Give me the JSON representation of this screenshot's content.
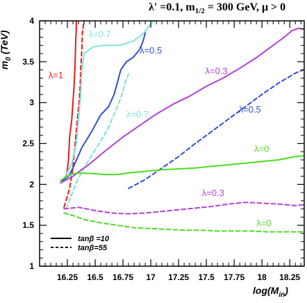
{
  "title_parts": {
    "lam": "λ' =0.1, m",
    "sub": "1/2",
    "rest": " = 300 GeV,  μ > 0"
  },
  "ylabel_parts": {
    "m": "m",
    "sub": "0",
    "rest": " (TeV)"
  },
  "xlabel_parts": {
    "pre": "log(M",
    "sub": "in",
    "post": ")"
  },
  "chart_data": {
    "type": "line",
    "xlim": [
      16.0,
      18.38
    ],
    "ylim": [
      1.0,
      4.0
    ],
    "xticks": [
      "16.25",
      "16.5",
      "16.75",
      "17",
      "17.25",
      "17.5",
      "17.75",
      "18",
      "18.25"
    ],
    "xtick_values": [
      16.25,
      16.5,
      16.75,
      17.0,
      17.25,
      17.5,
      17.75,
      18.0,
      18.25
    ],
    "yticks": [
      "1",
      "1.5",
      "2",
      "2.5",
      "3",
      "3.5",
      "4"
    ],
    "ytick_values": [
      1,
      1.5,
      2,
      2.5,
      3,
      3.5,
      4
    ],
    "grid": false,
    "legend": {
      "placement": "bottom-left",
      "entries": [
        {
          "label": "tanβ =10",
          "style": "solid"
        },
        {
          "label": "tanβ=55",
          "style": "dashed"
        }
      ]
    },
    "series": [
      {
        "label": "λ=1",
        "color": "#e8191b",
        "style": "solid",
        "x": [
          16.19,
          16.22,
          16.245,
          16.26,
          16.27,
          16.29,
          16.3,
          16.31,
          16.32,
          16.325,
          16.33,
          16.33
        ],
        "y": [
          2.02,
          2.05,
          2.13,
          2.3,
          2.58,
          2.8,
          3.0,
          3.2,
          3.5,
          3.75,
          3.9,
          4.0
        ]
      },
      {
        "label": "",
        "color": "#e8191b",
        "style": "dashed",
        "x": [
          16.22,
          16.27,
          16.3,
          16.32,
          16.34,
          16.355,
          16.365,
          16.37,
          16.38,
          16.385,
          16.4
        ],
        "y": [
          1.72,
          1.95,
          2.2,
          2.5,
          2.8,
          3.0,
          3.2,
          3.4,
          3.65,
          3.85,
          4.0
        ]
      },
      {
        "label": "λ=0.7",
        "color": "#7fe0dc",
        "style": "solid",
        "x": [
          16.19,
          16.23,
          16.29,
          16.33,
          16.35,
          16.37,
          16.38,
          16.4,
          16.48,
          16.57,
          16.63,
          16.72,
          16.84,
          16.94,
          16.98,
          17.03
        ],
        "y": [
          2.02,
          2.1,
          2.25,
          2.5,
          2.8,
          3.1,
          3.4,
          3.6,
          3.68,
          3.7,
          3.7,
          3.7,
          3.75,
          3.85,
          3.93,
          4.0
        ]
      },
      {
        "label": "λ=0.7",
        "color": "#7fe0dc",
        "style": "dashed",
        "x": [
          16.24,
          16.28,
          16.34,
          16.4,
          16.48,
          16.56,
          16.62,
          16.7,
          16.74,
          16.77,
          16.8
        ],
        "y": [
          1.7,
          1.85,
          2.05,
          2.2,
          2.38,
          2.55,
          2.7,
          2.95,
          3.1,
          3.25,
          3.35
        ]
      },
      {
        "label": "λ=0.5",
        "color": "#2f4fcf",
        "style": "solid",
        "x": [
          16.19,
          16.23,
          16.26,
          16.3,
          16.38,
          16.47,
          16.55,
          16.62,
          16.67,
          16.7,
          16.73,
          16.78,
          16.84,
          16.9,
          16.93,
          16.95
        ],
        "y": [
          2.02,
          2.07,
          2.1,
          2.2,
          2.45,
          2.65,
          2.85,
          2.95,
          3.1,
          3.25,
          3.4,
          3.5,
          3.55,
          3.65,
          3.75,
          3.85
        ]
      },
      {
        "label": "λ=0.5",
        "color": "#2f4fcf",
        "style": "dashed",
        "x": [
          16.8,
          16.95,
          17.1,
          17.25,
          17.4,
          17.55,
          17.7,
          17.85,
          18.0,
          18.15,
          18.3,
          18.37
        ],
        "y": [
          1.95,
          2.06,
          2.2,
          2.34,
          2.5,
          2.65,
          2.8,
          2.95,
          3.1,
          3.24,
          3.36,
          3.4
        ]
      },
      {
        "label": "λ=0.3",
        "color": "#b33fd6",
        "style": "solid",
        "x": [
          16.19,
          16.3,
          16.45,
          16.6,
          16.75,
          16.9,
          17.05,
          17.2,
          17.35,
          17.5,
          17.65,
          17.8,
          17.95,
          18.1,
          18.2,
          18.27,
          18.33,
          18.37
        ],
        "y": [
          2.02,
          2.1,
          2.25,
          2.42,
          2.58,
          2.72,
          2.86,
          2.98,
          3.08,
          3.2,
          3.3,
          3.42,
          3.55,
          3.7,
          3.8,
          3.88,
          3.91,
          3.9
        ]
      },
      {
        "label": "λ=0.3",
        "color": "#b33fd6",
        "style": "dashed",
        "x": [
          16.22,
          16.35,
          16.5,
          16.65,
          16.8,
          16.95,
          17.1,
          17.25,
          17.4,
          17.55,
          17.7,
          17.85,
          18.0,
          18.15,
          18.3,
          18.37
        ],
        "y": [
          1.7,
          1.72,
          1.68,
          1.65,
          1.64,
          1.65,
          1.67,
          1.69,
          1.71,
          1.73,
          1.76,
          1.78,
          1.77,
          1.76,
          1.74,
          1.75
        ]
      },
      {
        "label": "λ=0",
        "color": "#4cdb22",
        "style": "solid",
        "x": [
          16.19,
          16.25,
          16.3,
          16.38,
          16.5,
          16.6,
          16.7,
          16.8,
          16.95,
          17.1,
          17.25,
          17.4,
          17.55,
          17.7,
          17.85,
          18.0,
          18.15,
          18.3,
          18.37
        ],
        "y": [
          2.05,
          2.1,
          2.13,
          2.14,
          2.13,
          2.12,
          2.12,
          2.14,
          2.16,
          2.18,
          2.19,
          2.2,
          2.22,
          2.24,
          2.26,
          2.28,
          2.3,
          2.34,
          2.35
        ]
      },
      {
        "label": "λ=0",
        "color": "#4cdb22",
        "style": "dashed",
        "x": [
          16.22,
          16.3,
          16.4,
          16.55,
          16.7,
          16.85,
          17.0,
          17.15,
          17.3,
          17.45,
          17.6,
          17.75,
          17.9,
          18.05,
          18.2,
          18.37
        ],
        "y": [
          1.65,
          1.62,
          1.57,
          1.53,
          1.5,
          1.47,
          1.46,
          1.45,
          1.44,
          1.44,
          1.43,
          1.43,
          1.43,
          1.42,
          1.42,
          1.42
        ]
      }
    ],
    "annotations": [
      {
        "text": "λ=1",
        "color": "#e8191b",
        "x": 16.08,
        "y": 3.3
      },
      {
        "text": "λ=0.7",
        "color": "#7fe0dc",
        "x": 16.44,
        "y": 3.8
      },
      {
        "text": "λ=0.5",
        "color": "#2f4fcf",
        "x": 16.9,
        "y": 3.6
      },
      {
        "text": "λ=0.7",
        "color": "#7fe0dc",
        "x": 16.78,
        "y": 2.82
      },
      {
        "text": "λ=0.3",
        "color": "#b33fd6",
        "x": 17.49,
        "y": 3.35
      },
      {
        "text": "λ=0.5",
        "color": "#2f4fcf",
        "x": 17.79,
        "y": 2.88
      },
      {
        "text": "λ=0",
        "color": "#4cdb22",
        "x": 17.93,
        "y": 2.4
      },
      {
        "text": "λ=0.3",
        "color": "#b33fd6",
        "x": 17.46,
        "y": 1.86
      },
      {
        "text": "λ=0",
        "color": "#4cdb22",
        "x": 17.95,
        "y": 1.49
      }
    ]
  }
}
